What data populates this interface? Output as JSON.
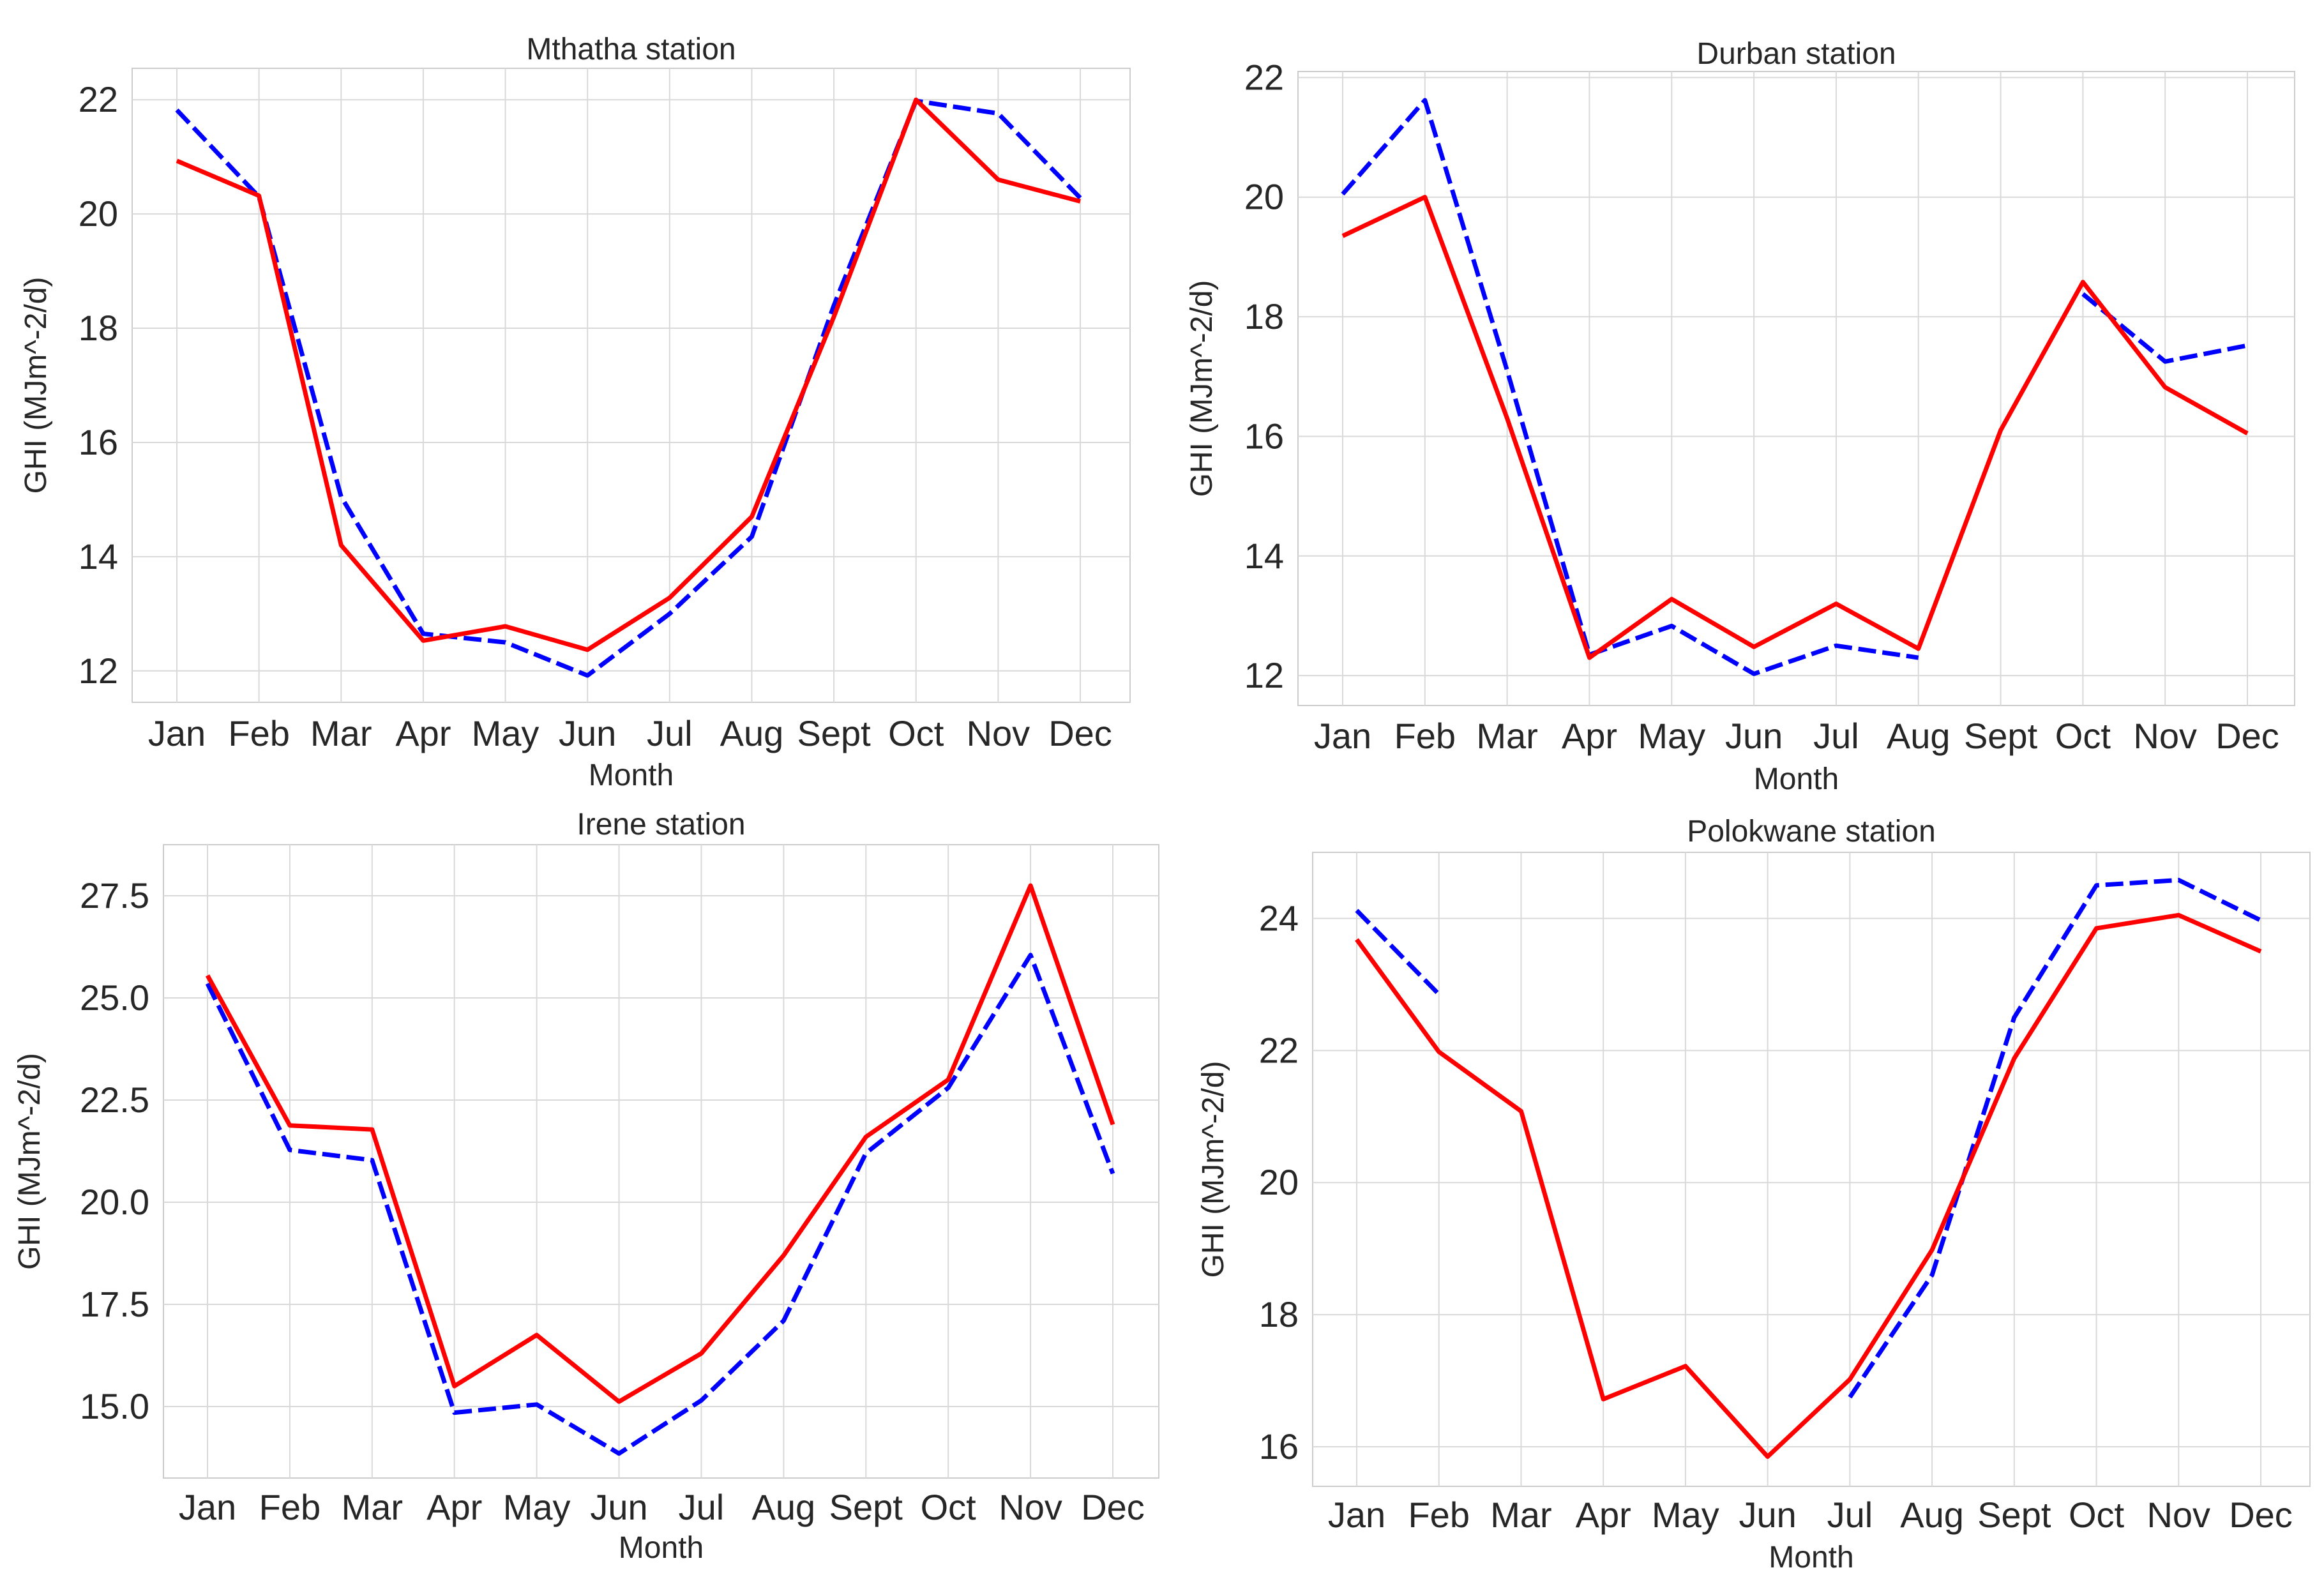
{
  "chart_data": [
    {
      "type": "line",
      "title": "Mthatha station",
      "xlabel": "Month",
      "ylabel": "GHI (MJm^-2/d)",
      "categories": [
        "Jan",
        "Feb",
        "Mar",
        "Apr",
        "May",
        "Jun",
        "Jul",
        "Aug",
        "Sept",
        "Oct",
        "Nov",
        "Dec"
      ],
      "ylim": [
        11.45,
        22.55
      ],
      "yticks": [
        12,
        14,
        16,
        18,
        20,
        22
      ],
      "ytick_labels": [
        "12",
        "14",
        "16",
        "18",
        "20",
        "22"
      ],
      "grid": true,
      "series": [
        {
          "name": "series-1",
          "style": "solid",
          "color": "#ff0000",
          "values": [
            20.93,
            20.32,
            14.2,
            12.53,
            12.78,
            12.37,
            13.28,
            14.7,
            18.2,
            22.0,
            20.6,
            20.22
          ]
        },
        {
          "name": "series-2",
          "style": "dashed",
          "color": "#0000ff",
          "values": [
            21.82,
            20.3,
            15.05,
            12.65,
            12.5,
            11.92,
            13.0,
            14.35,
            18.4,
            21.98,
            21.76,
            20.28
          ]
        }
      ]
    },
    {
      "type": "line",
      "title": "Durban station",
      "xlabel": "Month",
      "ylabel": "GHI (MJm^-2/d)",
      "categories": [
        "Jan",
        "Feb",
        "Mar",
        "Apr",
        "May",
        "Jun",
        "Jul",
        "Aug",
        "Sept",
        "Oct",
        "Nov",
        "Dec"
      ],
      "ylim": [
        11.5,
        22.1
      ],
      "yticks": [
        12,
        14,
        16,
        18,
        20,
        22
      ],
      "ytick_labels": [
        "12",
        "14",
        "16",
        "18",
        "20",
        "22"
      ],
      "grid": true,
      "series": [
        {
          "name": "series-1",
          "style": "solid",
          "color": "#ff0000",
          "values": [
            19.35,
            20.0,
            16.3,
            12.3,
            13.28,
            12.48,
            13.2,
            12.45,
            16.1,
            18.58,
            16.82,
            16.05
          ]
        },
        {
          "name": "series-2",
          "style": "dashed",
          "color": "#0000ff",
          "values": [
            20.05,
            21.62,
            17.1,
            12.35,
            12.83,
            12.03,
            12.5,
            12.3,
            null,
            18.38,
            17.25,
            17.52
          ]
        }
      ]
    },
    {
      "type": "line",
      "title": "Irene station",
      "xlabel": "Month",
      "ylabel": "GHI (MJm^-2/d)",
      "categories": [
        "Jan",
        "Feb",
        "Mar",
        "Apr",
        "May",
        "Jun",
        "Jul",
        "Aug",
        "Sept",
        "Oct",
        "Nov",
        "Dec"
      ],
      "ylim": [
        13.25,
        28.75
      ],
      "yticks": [
        15.0,
        17.5,
        20.0,
        22.5,
        25.0,
        27.5
      ],
      "ytick_labels": [
        "15.0",
        "17.5",
        "20.0",
        "22.5",
        "25.0",
        "27.5"
      ],
      "grid": true,
      "series": [
        {
          "name": "series-1",
          "style": "solid",
          "color": "#ff0000",
          "values": [
            25.55,
            21.88,
            21.78,
            15.5,
            16.75,
            15.12,
            16.3,
            18.7,
            21.6,
            23.0,
            27.75,
            21.9
          ]
        },
        {
          "name": "series-2",
          "style": "dashed",
          "color": "#0000ff",
          "values": [
            25.35,
            21.28,
            21.03,
            14.85,
            15.05,
            13.85,
            15.15,
            17.1,
            21.2,
            22.8,
            26.05,
            20.7
          ]
        }
      ]
    },
    {
      "type": "line",
      "title": "Polokwane station",
      "xlabel": "Month",
      "ylabel": "GHI (MJm^-2/d)",
      "categories": [
        "Jan",
        "Feb",
        "Mar",
        "Apr",
        "May",
        "Jun",
        "Jul",
        "Aug",
        "Sept",
        "Oct",
        "Nov",
        "Dec"
      ],
      "ylim": [
        15.4,
        25.0
      ],
      "yticks": [
        16,
        18,
        20,
        22,
        24
      ],
      "ytick_labels": [
        "16",
        "18",
        "20",
        "22",
        "24"
      ],
      "grid": true,
      "series": [
        {
          "name": "series-1",
          "style": "solid",
          "color": "#ff0000",
          "values": [
            23.68,
            21.98,
            21.08,
            16.72,
            17.22,
            15.85,
            17.02,
            18.98,
            21.88,
            23.85,
            24.05,
            23.5
          ]
        },
        {
          "name": "series-2",
          "style": "dashed",
          "color": "#0000ff",
          "values": [
            24.12,
            22.85,
            null,
            null,
            null,
            null,
            16.75,
            18.6,
            22.5,
            24.5,
            24.58,
            23.97
          ]
        }
      ]
    }
  ]
}
